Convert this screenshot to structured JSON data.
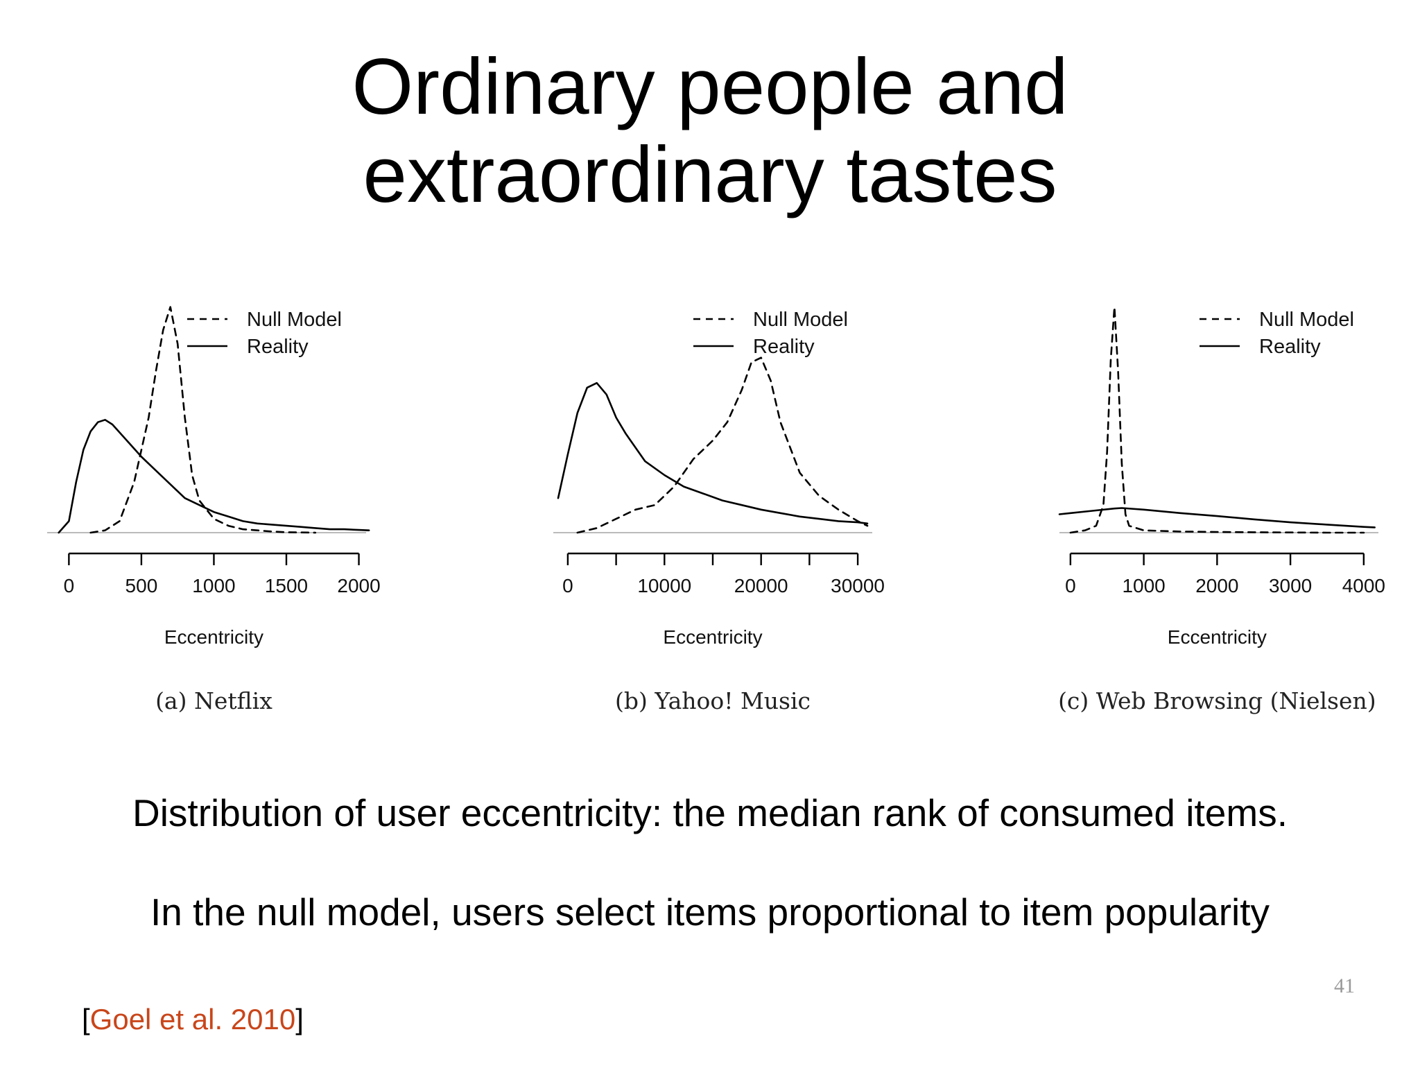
{
  "slide": {
    "title_lines": [
      "Ordinary people and",
      "extraordinary tastes"
    ],
    "body_lines": [
      "Distribution of user eccentricity: the median rank of consumed items.",
      "In the null model, users select items proportional to item popularity"
    ],
    "citation": {
      "open": "[",
      "link_text": "Goel et al. 2010",
      "close": "]",
      "link_color": "#c9461a"
    },
    "page_number": "41"
  },
  "chart_data": [
    {
      "type": "line",
      "caption": "(a) Netflix",
      "xlabel": "Eccentricity",
      "ylabel": "",
      "xlim": [
        -150,
        2050
      ],
      "ylim": [
        -0.03,
        1.0
      ],
      "xticks": [
        0,
        500,
        1000,
        1500,
        2000
      ],
      "xtick_labels": [
        "0",
        "500",
        "1000",
        "1500",
        "2000"
      ],
      "legend": {
        "position": "top-right",
        "entries": [
          "Null Model",
          "Reality"
        ]
      },
      "series": [
        {
          "name": "Null Model",
          "style": "dashed",
          "x": [
            150,
            250,
            350,
            450,
            550,
            600,
            650,
            700,
            750,
            800,
            850,
            900,
            1000,
            1100,
            1200,
            1300,
            1400,
            1500,
            1600,
            1700
          ],
          "y": [
            0.0,
            0.01,
            0.05,
            0.22,
            0.5,
            0.7,
            0.88,
            0.98,
            0.82,
            0.5,
            0.25,
            0.14,
            0.06,
            0.03,
            0.015,
            0.01,
            0.005,
            0.002,
            0.001,
            0.0
          ]
        },
        {
          "name": "Reality",
          "style": "solid",
          "x": [
            -70,
            0,
            50,
            100,
            150,
            200,
            250,
            300,
            400,
            500,
            600,
            700,
            800,
            900,
            1000,
            1100,
            1200,
            1300,
            1400,
            1500,
            1600,
            1700,
            1800,
            1900,
            2000,
            2070
          ],
          "y": [
            0.0,
            0.05,
            0.22,
            0.36,
            0.44,
            0.48,
            0.49,
            0.47,
            0.4,
            0.33,
            0.27,
            0.21,
            0.15,
            0.12,
            0.09,
            0.07,
            0.05,
            0.04,
            0.035,
            0.03,
            0.025,
            0.02,
            0.015,
            0.015,
            0.012,
            0.01
          ]
        }
      ]
    },
    {
      "type": "line",
      "caption": "(b) Yahoo! Music",
      "xlabel": "Eccentricity",
      "ylabel": "",
      "xlim": [
        -1500,
        31500
      ],
      "ylim": [
        -0.03,
        1.0
      ],
      "xticks": [
        0,
        5000,
        10000,
        15000,
        20000,
        25000,
        30000
      ],
      "xtick_labels": [
        "0",
        "",
        "10000",
        "",
        "20000",
        "",
        "30000"
      ],
      "legend": {
        "position": "top-right",
        "entries": [
          "Null Model",
          "Reality"
        ]
      },
      "series": [
        {
          "name": "Null Model",
          "style": "dashed",
          "x": [
            1000,
            3000,
            5000,
            7000,
            9000,
            11000,
            13000,
            15000,
            16500,
            18000,
            19000,
            20000,
            21000,
            22000,
            24000,
            26000,
            28000,
            30000,
            31000
          ],
          "y": [
            0.0,
            0.02,
            0.06,
            0.1,
            0.12,
            0.2,
            0.32,
            0.4,
            0.48,
            0.62,
            0.74,
            0.76,
            0.66,
            0.48,
            0.26,
            0.16,
            0.1,
            0.05,
            0.03
          ]
        },
        {
          "name": "Reality",
          "style": "solid",
          "x": [
            -1000,
            0,
            1000,
            2000,
            3000,
            4000,
            5000,
            6000,
            8000,
            10000,
            12000,
            14000,
            16000,
            18000,
            20000,
            22000,
            24000,
            26000,
            28000,
            30000,
            31000
          ],
          "y": [
            0.15,
            0.34,
            0.52,
            0.63,
            0.65,
            0.6,
            0.5,
            0.43,
            0.31,
            0.25,
            0.2,
            0.17,
            0.14,
            0.12,
            0.1,
            0.085,
            0.07,
            0.06,
            0.05,
            0.045,
            0.04
          ]
        }
      ]
    },
    {
      "type": "line",
      "caption": "(c) Web Browsing (Nielsen)",
      "xlabel": "Eccentricity",
      "ylabel": "",
      "xlim": [
        -150,
        4200
      ],
      "ylim": [
        -0.03,
        1.0
      ],
      "xticks": [
        0,
        1000,
        2000,
        3000,
        4000
      ],
      "xtick_labels": [
        "0",
        "1000",
        "2000",
        "3000",
        "4000"
      ],
      "legend": {
        "position": "top-right",
        "entries": [
          "Null Model",
          "Reality"
        ]
      },
      "series": [
        {
          "name": "Null Model",
          "style": "dashed",
          "x": [
            0,
            200,
            350,
            450,
            500,
            550,
            600,
            650,
            700,
            750,
            800,
            1000,
            1500,
            2000,
            2500,
            3000,
            3500,
            4000
          ],
          "y": [
            0.0,
            0.01,
            0.03,
            0.12,
            0.35,
            0.75,
            0.98,
            0.7,
            0.3,
            0.08,
            0.03,
            0.01,
            0.005,
            0.003,
            0.002,
            0.001,
            0.0,
            0.0
          ]
        },
        {
          "name": "Reality",
          "style": "solid",
          "x": [
            -150,
            0,
            300,
            600,
            700,
            1000,
            1500,
            2000,
            2500,
            3000,
            3500,
            4000,
            4150
          ],
          "y": [
            0.08,
            0.085,
            0.095,
            0.105,
            0.107,
            0.1,
            0.085,
            0.072,
            0.058,
            0.045,
            0.035,
            0.025,
            0.023
          ]
        }
      ]
    }
  ]
}
